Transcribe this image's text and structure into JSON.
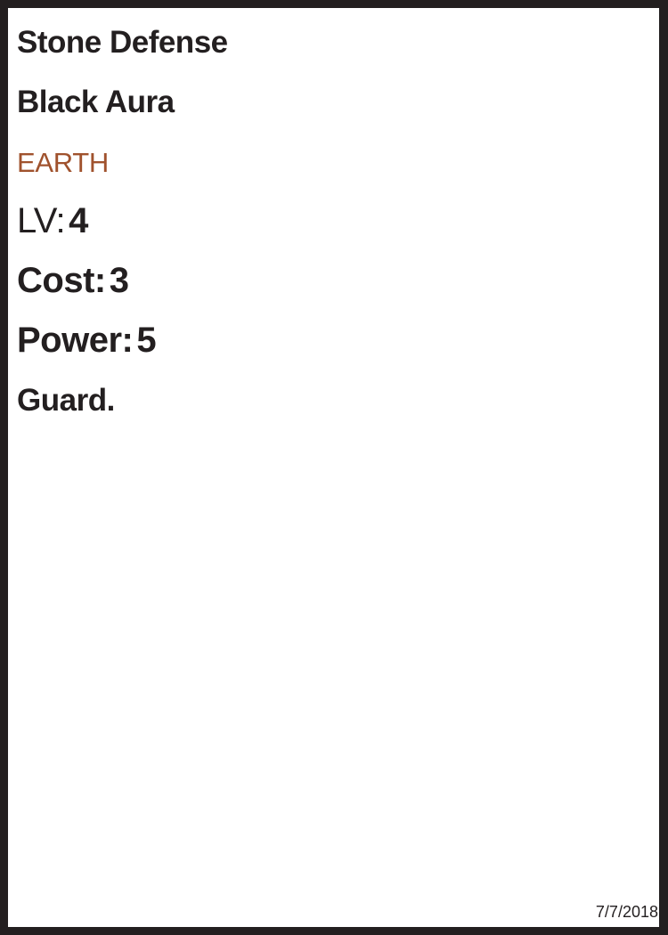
{
  "card": {
    "name": "Stone Defense",
    "subtype": "Black Aura",
    "element": "EARTH",
    "element_color": "#a0522d",
    "border_color": "#231f20",
    "level_label": "LV:",
    "level_value": "4",
    "cost_label": "Cost:",
    "cost_value": "3",
    "power_label": "Power:",
    "power_value": "5",
    "ability_text": "Guard.",
    "date": "7/7/2018"
  }
}
